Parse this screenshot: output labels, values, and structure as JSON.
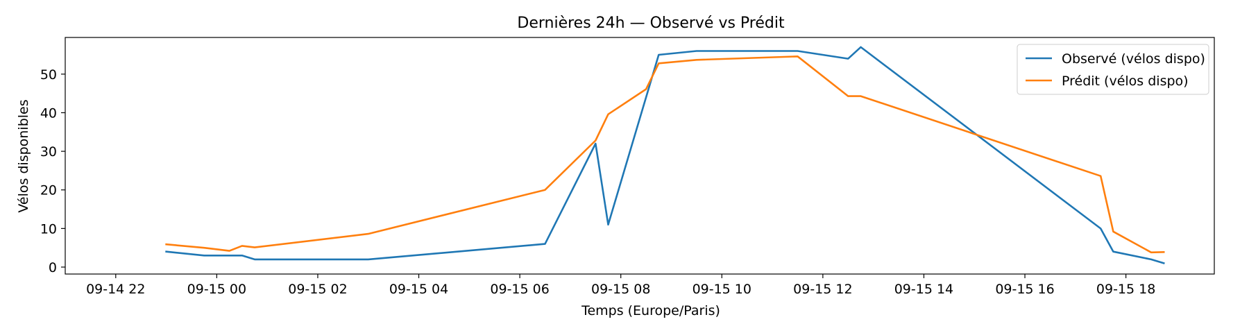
{
  "chart_data": {
    "type": "line",
    "title": "Dernières 24h — Observé vs Prédit",
    "xlabel": "Temps (Europe/Paris)",
    "ylabel": "Vélos disponibles",
    "x_ticks": [
      {
        "value": "2025-09-14T22:00",
        "label": "09-14 22"
      },
      {
        "value": "2025-09-15T00:00",
        "label": "09-15 00"
      },
      {
        "value": "2025-09-15T02:00",
        "label": "09-15 02"
      },
      {
        "value": "2025-09-15T04:00",
        "label": "09-15 04"
      },
      {
        "value": "2025-09-15T06:00",
        "label": "09-15 06"
      },
      {
        "value": "2025-09-15T08:00",
        "label": "09-15 08"
      },
      {
        "value": "2025-09-15T10:00",
        "label": "09-15 10"
      },
      {
        "value": "2025-09-15T12:00",
        "label": "09-15 12"
      },
      {
        "value": "2025-09-15T14:00",
        "label": "09-15 14"
      },
      {
        "value": "2025-09-15T16:00",
        "label": "09-15 16"
      },
      {
        "value": "2025-09-15T18:00",
        "label": "09-15 18"
      }
    ],
    "y_ticks": [
      0,
      10,
      20,
      30,
      40,
      50
    ],
    "xlim": [
      "2025-09-14T21:00",
      "2025-09-15T19:45"
    ],
    "ylim": [
      -1.8,
      59.5
    ],
    "grid": false,
    "legend_position": "upper right",
    "series": [
      {
        "name": "Observé (vélos dispo)",
        "color": "#1f77b4",
        "points": [
          {
            "x": "2025-09-14T23:00",
            "y": 4
          },
          {
            "x": "2025-09-14T23:45",
            "y": 3
          },
          {
            "x": "2025-09-15T00:30",
            "y": 3
          },
          {
            "x": "2025-09-15T00:45",
            "y": 2
          },
          {
            "x": "2025-09-15T03:00",
            "y": 2
          },
          {
            "x": "2025-09-15T06:30",
            "y": 6
          },
          {
            "x": "2025-09-15T07:30",
            "y": 32
          },
          {
            "x": "2025-09-15T07:45",
            "y": 11
          },
          {
            "x": "2025-09-15T08:45",
            "y": 55
          },
          {
            "x": "2025-09-15T09:30",
            "y": 56
          },
          {
            "x": "2025-09-15T11:30",
            "y": 56
          },
          {
            "x": "2025-09-15T12:30",
            "y": 54
          },
          {
            "x": "2025-09-15T12:45",
            "y": 57
          },
          {
            "x": "2025-09-15T17:30",
            "y": 10
          },
          {
            "x": "2025-09-15T17:45",
            "y": 4
          },
          {
            "x": "2025-09-15T18:30",
            "y": 2
          },
          {
            "x": "2025-09-15T18:45",
            "y": 1
          }
        ]
      },
      {
        "name": "Prédit (vélos dispo)",
        "color": "#ff7f0e",
        "points": [
          {
            "x": "2025-09-14T23:00",
            "y": 5.9
          },
          {
            "x": "2025-09-14T23:45",
            "y": 5.0
          },
          {
            "x": "2025-09-15T00:15",
            "y": 4.2
          },
          {
            "x": "2025-09-15T00:30",
            "y": 5.5
          },
          {
            "x": "2025-09-15T00:45",
            "y": 5.1
          },
          {
            "x": "2025-09-15T03:00",
            "y": 8.6
          },
          {
            "x": "2025-09-15T06:30",
            "y": 20.0
          },
          {
            "x": "2025-09-15T07:30",
            "y": 32.8
          },
          {
            "x": "2025-09-15T07:45",
            "y": 39.6
          },
          {
            "x": "2025-09-15T08:30",
            "y": 46.1
          },
          {
            "x": "2025-09-15T08:45",
            "y": 52.8
          },
          {
            "x": "2025-09-15T09:30",
            "y": 53.7
          },
          {
            "x": "2025-09-15T11:30",
            "y": 54.6
          },
          {
            "x": "2025-09-15T12:30",
            "y": 44.3
          },
          {
            "x": "2025-09-15T12:45",
            "y": 44.3
          },
          {
            "x": "2025-09-15T17:30",
            "y": 23.6
          },
          {
            "x": "2025-09-15T17:45",
            "y": 9.2
          },
          {
            "x": "2025-09-15T18:30",
            "y": 3.8
          },
          {
            "x": "2025-09-15T18:45",
            "y": 3.9
          }
        ]
      }
    ]
  }
}
